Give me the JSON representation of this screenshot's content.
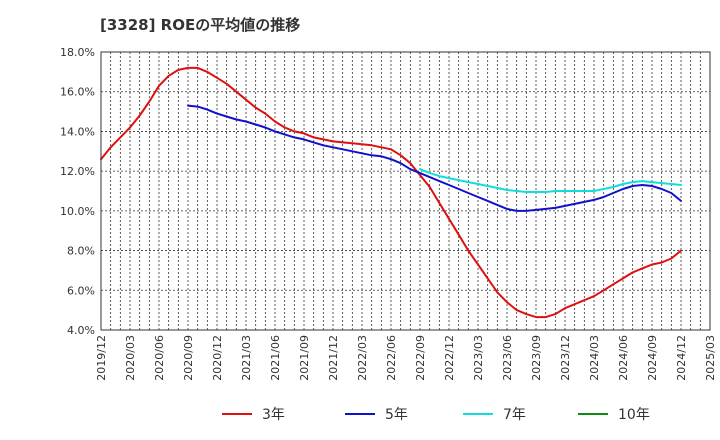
{
  "chart_data": {
    "type": "line",
    "title": "[3328]  ROEの平均値の推移",
    "xlabel": "",
    "ylabel": "",
    "ylim": [
      4.0,
      18.0
    ],
    "y_ticks": [
      "4.0%",
      "6.0%",
      "8.0%",
      "10.0%",
      "12.0%",
      "14.0%",
      "16.0%",
      "18.0%"
    ],
    "x_ticks": [
      "2019/12",
      "2020/03",
      "2020/06",
      "2020/09",
      "2020/12",
      "2021/03",
      "2021/06",
      "2021/09",
      "2021/12",
      "2022/03",
      "2022/06",
      "2022/09",
      "2022/12",
      "2023/03",
      "2023/06",
      "2023/09",
      "2023/12",
      "2024/03",
      "2024/06",
      "2024/09",
      "2024/12",
      "2025/03"
    ],
    "grid": true,
    "legend_position": "bottom",
    "series": [
      {
        "name": "3年",
        "color": "#dd1111",
        "x": [
          "2019/12",
          "2020/01",
          "2020/02",
          "2020/03",
          "2020/04",
          "2020/05",
          "2020/06",
          "2020/07",
          "2020/08",
          "2020/09",
          "2020/10",
          "2020/11",
          "2020/12",
          "2021/01",
          "2021/02",
          "2021/03",
          "2021/04",
          "2021/05",
          "2021/06",
          "2021/07",
          "2021/08",
          "2021/09",
          "2021/10",
          "2021/11",
          "2021/12",
          "2022/01",
          "2022/02",
          "2022/03",
          "2022/04",
          "2022/05",
          "2022/06",
          "2022/07",
          "2022/08",
          "2022/09",
          "2022/10",
          "2022/11",
          "2022/12",
          "2023/01",
          "2023/02",
          "2023/03",
          "2023/04",
          "2023/05",
          "2023/06",
          "2023/07",
          "2023/08",
          "2023/09",
          "2023/10",
          "2023/11",
          "2023/12",
          "2024/01",
          "2024/02",
          "2024/03",
          "2024/04",
          "2024/05",
          "2024/06",
          "2024/07",
          "2024/08",
          "2024/09",
          "2024/10",
          "2024/11",
          "2024/12"
        ],
        "y": [
          12.6,
          13.2,
          13.7,
          14.2,
          14.8,
          15.5,
          16.3,
          16.8,
          17.1,
          17.2,
          17.2,
          17.0,
          16.7,
          16.4,
          16.0,
          15.6,
          15.2,
          14.9,
          14.5,
          14.2,
          14.0,
          13.9,
          13.7,
          13.6,
          13.5,
          13.45,
          13.4,
          13.35,
          13.3,
          13.2,
          13.1,
          12.8,
          12.4,
          11.8,
          11.2,
          10.4,
          9.6,
          8.8,
          8.0,
          7.3,
          6.6,
          5.9,
          5.4,
          5.0,
          4.8,
          4.65,
          4.65,
          4.8,
          5.1,
          5.3,
          5.5,
          5.7,
          6.0,
          6.3,
          6.6,
          6.9,
          7.1,
          7.3,
          7.4,
          7.6,
          8.0
        ]
      },
      {
        "name": "5年",
        "color": "#1111cc",
        "x": [
          "2020/09",
          "2020/10",
          "2020/11",
          "2020/12",
          "2021/01",
          "2021/02",
          "2021/03",
          "2021/04",
          "2021/05",
          "2021/06",
          "2021/07",
          "2021/08",
          "2021/09",
          "2021/10",
          "2021/11",
          "2021/12",
          "2022/01",
          "2022/02",
          "2022/03",
          "2022/04",
          "2022/05",
          "2022/06",
          "2022/07",
          "2022/08",
          "2022/09",
          "2022/10",
          "2022/11",
          "2022/12",
          "2023/01",
          "2023/02",
          "2023/03",
          "2023/04",
          "2023/05",
          "2023/06",
          "2023/07",
          "2023/08",
          "2023/09",
          "2023/10",
          "2023/11",
          "2023/12",
          "2024/01",
          "2024/02",
          "2024/03",
          "2024/04",
          "2024/05",
          "2024/06",
          "2024/07",
          "2024/08",
          "2024/09",
          "2024/10",
          "2024/11",
          "2024/12"
        ],
        "y": [
          15.3,
          15.25,
          15.1,
          14.9,
          14.75,
          14.6,
          14.5,
          14.35,
          14.2,
          14.0,
          13.85,
          13.7,
          13.6,
          13.45,
          13.3,
          13.2,
          13.1,
          13.0,
          12.9,
          12.8,
          12.75,
          12.6,
          12.4,
          12.1,
          11.9,
          11.7,
          11.5,
          11.3,
          11.1,
          10.9,
          10.7,
          10.5,
          10.3,
          10.1,
          10.0,
          10.0,
          10.05,
          10.1,
          10.15,
          10.25,
          10.35,
          10.45,
          10.55,
          10.7,
          10.9,
          11.1,
          11.25,
          11.3,
          11.25,
          11.1,
          10.9,
          10.5
        ]
      },
      {
        "name": "7年",
        "color": "#11dddd",
        "x": [
          "2022/09",
          "2022/10",
          "2022/11",
          "2022/12",
          "2023/01",
          "2023/02",
          "2023/03",
          "2023/04",
          "2023/05",
          "2023/06",
          "2023/07",
          "2023/08",
          "2023/09",
          "2023/10",
          "2023/11",
          "2023/12",
          "2024/01",
          "2024/02",
          "2024/03",
          "2024/04",
          "2024/05",
          "2024/06",
          "2024/07",
          "2024/08",
          "2024/09",
          "2024/10",
          "2024/11",
          "2024/12"
        ],
        "y": [
          12.1,
          11.9,
          11.75,
          11.65,
          11.55,
          11.45,
          11.35,
          11.25,
          11.15,
          11.05,
          11.0,
          10.95,
          10.95,
          10.95,
          11.0,
          11.0,
          11.0,
          11.0,
          11.0,
          11.1,
          11.2,
          11.35,
          11.45,
          11.5,
          11.45,
          11.4,
          11.35,
          11.3
        ]
      },
      {
        "name": "10年",
        "color": "#118811",
        "x": [],
        "y": []
      }
    ]
  }
}
